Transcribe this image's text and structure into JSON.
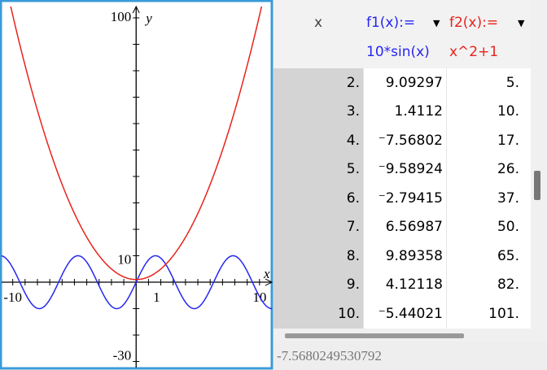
{
  "graph": {
    "xlim": [
      -10.9,
      11
    ],
    "ylim": [
      -32.3,
      104.3
    ],
    "xticks": [
      -10,
      -9,
      -8,
      -7,
      -6,
      -5,
      -4,
      -3,
      -2,
      -1,
      1,
      2,
      3,
      4,
      5,
      6,
      7,
      8,
      9,
      10
    ],
    "yticks": [
      -30,
      -20,
      -10,
      10,
      20,
      30,
      40,
      50,
      60,
      70,
      80,
      90,
      100
    ],
    "x_axis_label": "x",
    "y_axis_label": "y",
    "x_labels": [
      {
        "value": -10,
        "label": "-10"
      },
      {
        "value": 1,
        "label": "1"
      },
      {
        "value": 10,
        "label": "10"
      }
    ],
    "y_labels": [
      {
        "value": 100,
        "label": "100"
      },
      {
        "value": 10,
        "label": "10"
      },
      {
        "value": -30,
        "label": "-30"
      }
    ],
    "functions": [
      {
        "name": "f1(x):=",
        "expr": "10*sin(x)",
        "color": "#2626f0"
      },
      {
        "name": "f2(x):=",
        "expr": "x^2+1",
        "color": "#e8231c"
      }
    ]
  },
  "table": {
    "x_header": "x",
    "rows": [
      [
        "2.",
        "9.09297",
        "5."
      ],
      [
        "3.",
        "1.4112",
        "10."
      ],
      [
        "4.",
        "⁻7.56802",
        "17."
      ],
      [
        "5.",
        "⁻9.58924",
        "26."
      ],
      [
        "6.",
        "⁻2.79415",
        "37."
      ],
      [
        "7.",
        "6.56987",
        "50."
      ],
      [
        "8.",
        "9.89358",
        "65."
      ],
      [
        "9.",
        "4.12118",
        "82."
      ],
      [
        "10.",
        "⁻5.44021",
        "101."
      ]
    ]
  },
  "status": "-7.5680249530792"
}
